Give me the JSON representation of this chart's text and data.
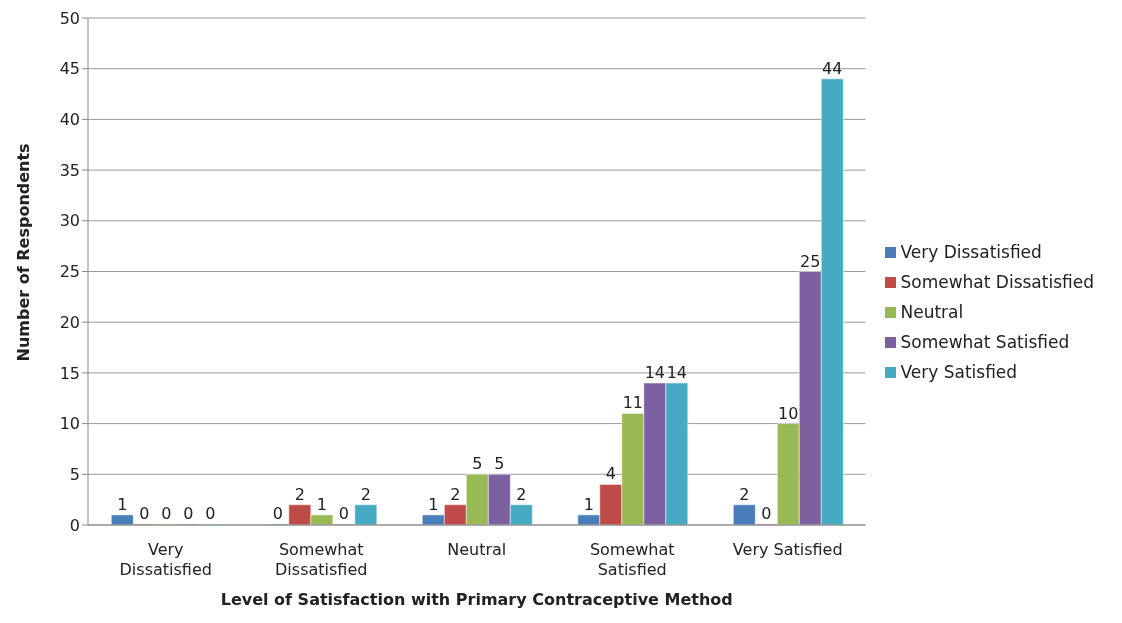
{
  "chart_data": {
    "type": "bar",
    "xlabel": "Level of Satisfaction with Primary Contraceptive Method",
    "ylabel": "Number of Respondents",
    "categories": [
      "Very Dissatisfied",
      "Somewhat Dissatisfied",
      "Neutral",
      "Somewhat Satisfied",
      "Very Satisfied"
    ],
    "series": [
      {
        "name": "Very Dissatisfied",
        "color": "#4a7ebb",
        "values": [
          1,
          0,
          1,
          1,
          2
        ]
      },
      {
        "name": "Somewhat Dissatisfied",
        "color": "#be4b48",
        "values": [
          0,
          2,
          2,
          4,
          0
        ]
      },
      {
        "name": "Neutral",
        "color": "#98b954",
        "values": [
          0,
          1,
          5,
          11,
          10
        ]
      },
      {
        "name": "Somewhat Satisfied",
        "color": "#7d60a0",
        "values": [
          0,
          0,
          5,
          14,
          25
        ]
      },
      {
        "name": "Very Satisfied",
        "color": "#46aac5",
        "values": [
          0,
          2,
          2,
          14,
          44
        ]
      }
    ],
    "ylim": [
      0,
      50
    ],
    "yticks": [
      0,
      5,
      10,
      15,
      20,
      25,
      30,
      35,
      40,
      45,
      50
    ],
    "grid": "y",
    "legend": "right",
    "data_labels": true
  }
}
